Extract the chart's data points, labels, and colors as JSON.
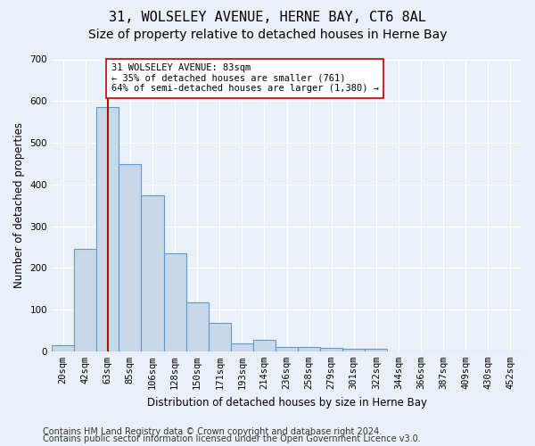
{
  "title": "31, WOLSELEY AVENUE, HERNE BAY, CT6 8AL",
  "subtitle": "Size of property relative to detached houses in Herne Bay",
  "xlabel": "Distribution of detached houses by size in Herne Bay",
  "ylabel": "Number of detached properties",
  "bar_values": [
    15,
    245,
    585,
    448,
    373,
    235,
    118,
    68,
    18,
    27,
    10,
    10,
    8,
    6,
    5,
    0,
    0,
    0,
    0,
    0,
    0
  ],
  "bar_labels": [
    "20sqm",
    "42sqm",
    "63sqm",
    "85sqm",
    "106sqm",
    "128sqm",
    "150sqm",
    "171sqm",
    "193sqm",
    "214sqm",
    "236sqm",
    "258sqm",
    "279sqm",
    "301sqm",
    "322sqm",
    "344sqm",
    "366sqm",
    "387sqm",
    "409sqm",
    "430sqm",
    "452sqm"
  ],
  "highlight_index": 2,
  "bar_color": "#c8d8e8",
  "bar_edge_color": "#5b9bd5",
  "highlight_line_color": "#c00000",
  "annotation_text": "31 WOLSELEY AVENUE: 83sqm\n← 35% of detached houses are smaller (761)\n64% of semi-detached houses are larger (1,380) →",
  "annotation_box_color": "#ffffff",
  "annotation_box_edge_color": "#c00000",
  "ylim": [
    0,
    700
  ],
  "yticks": [
    0,
    100,
    200,
    300,
    400,
    500,
    600,
    700
  ],
  "footer1": "Contains HM Land Registry data © Crown copyright and database right 2024.",
  "footer2": "Contains public sector information licensed under the Open Government Licence v3.0.",
  "background_color": "#eaf0f8",
  "plot_bg_color": "#eaf0f8",
  "grid_color": "#ffffff",
  "title_fontsize": 11,
  "subtitle_fontsize": 10,
  "axis_label_fontsize": 8.5,
  "tick_fontsize": 7.5,
  "footer_fontsize": 7
}
